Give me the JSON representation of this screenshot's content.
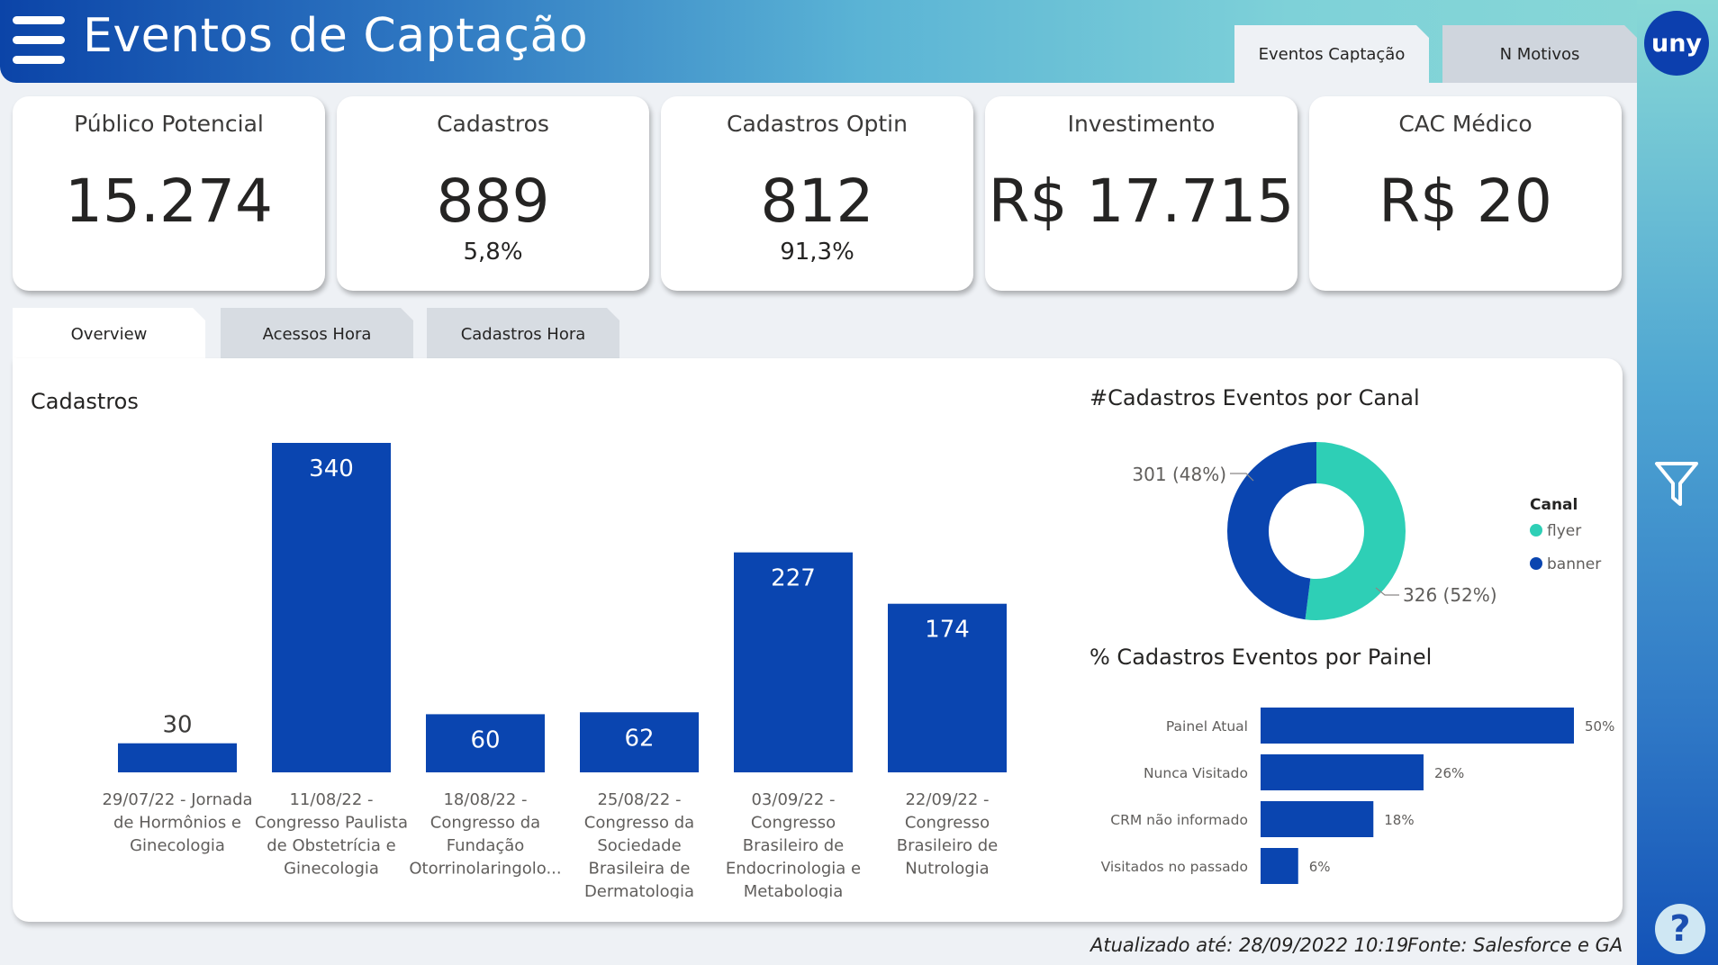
{
  "header": {
    "title": "Eventos de Captação",
    "tabs": [
      {
        "label": "Eventos Captação",
        "active": true
      },
      {
        "label": "N Motivos",
        "active": false
      }
    ],
    "logo_text": "uny",
    "gradient_colors": [
      "#0b44a8",
      "#88d8d6"
    ]
  },
  "kpis": [
    {
      "label": "Público Potencial",
      "value": "15.274",
      "sub": ""
    },
    {
      "label": "Cadastros",
      "value": "889",
      "sub": "5,8%"
    },
    {
      "label": "Cadastros Optin",
      "value": "812",
      "sub": "91,3%"
    },
    {
      "label": "Investimento",
      "value": "R$ 17.715",
      "sub": ""
    },
    {
      "label": "CAC Médico",
      "value": "R$ 20",
      "sub": ""
    }
  ],
  "section_tabs": [
    {
      "label": "Overview",
      "active": true
    },
    {
      "label": "Acessos Hora",
      "active": false
    },
    {
      "label": "Cadastros Hora",
      "active": false
    }
  ],
  "colors": {
    "bar": "#0a45b0",
    "flyer": "#2ecfb6",
    "banner": "#0a45b0"
  },
  "chart_data": [
    {
      "type": "bar",
      "title": "Cadastros",
      "categories": [
        "29/07/22 - Jornada de Hormônios e Ginecologia",
        "11/08/22 - Congresso Paulista de Obstetrícia e Ginecologia",
        "18/08/22 - Congresso da Fundação Otorrinolaringolo...",
        "25/08/22 - Congresso da Sociedade Brasileira de Dermatologia",
        "03/09/22 - Congresso Brasileiro de Endocrinologia e Metabologia",
        "22/09/22 - Congresso Brasileiro de Nutrologia"
      ],
      "category_lines": [
        [
          "29/07/22 - Jornada",
          "de Hormônios e",
          "Ginecologia"
        ],
        [
          "11/08/22 -",
          "Congresso Paulista",
          "de Obstetrícia e",
          "Ginecologia"
        ],
        [
          "18/08/22 -",
          "Congresso da",
          "Fundação",
          "Otorrinolaringolo..."
        ],
        [
          "25/08/22 -",
          "Congresso da",
          "Sociedade",
          "Brasileira de",
          "Dermatologia"
        ],
        [
          "03/09/22 -",
          "Congresso",
          "Brasileiro de",
          "Endocrinologia e",
          "Metabologia"
        ],
        [
          "22/09/22 -",
          "Congresso",
          "Brasileiro de",
          "Nutrologia"
        ]
      ],
      "values": [
        30,
        340,
        60,
        62,
        227,
        174
      ],
      "ylim": [
        0,
        340
      ]
    },
    {
      "type": "pie",
      "title": "#Cadastros Eventos por Canal",
      "legend_title": "Canal",
      "legend_position": "right",
      "slices": [
        {
          "name": "flyer",
          "value": 326,
          "label": "326 (52%)"
        },
        {
          "name": "banner",
          "value": 301,
          "label": "301 (48%)"
        }
      ]
    },
    {
      "type": "bar",
      "orientation": "horizontal",
      "title": "% Cadastros Eventos por Painel",
      "categories": [
        "Painel Atual",
        "Nunca Visitado",
        "CRM não informado",
        "Visitados no passado"
      ],
      "values": [
        50,
        26,
        18,
        6
      ],
      "value_labels": [
        "50%",
        "26%",
        "18%",
        "6%"
      ],
      "xlim": [
        0,
        50
      ]
    }
  ],
  "footer": {
    "updated": "Atualizado até: 28/09/2022 10:19",
    "source": "Fonte: Salesforce e GA"
  }
}
